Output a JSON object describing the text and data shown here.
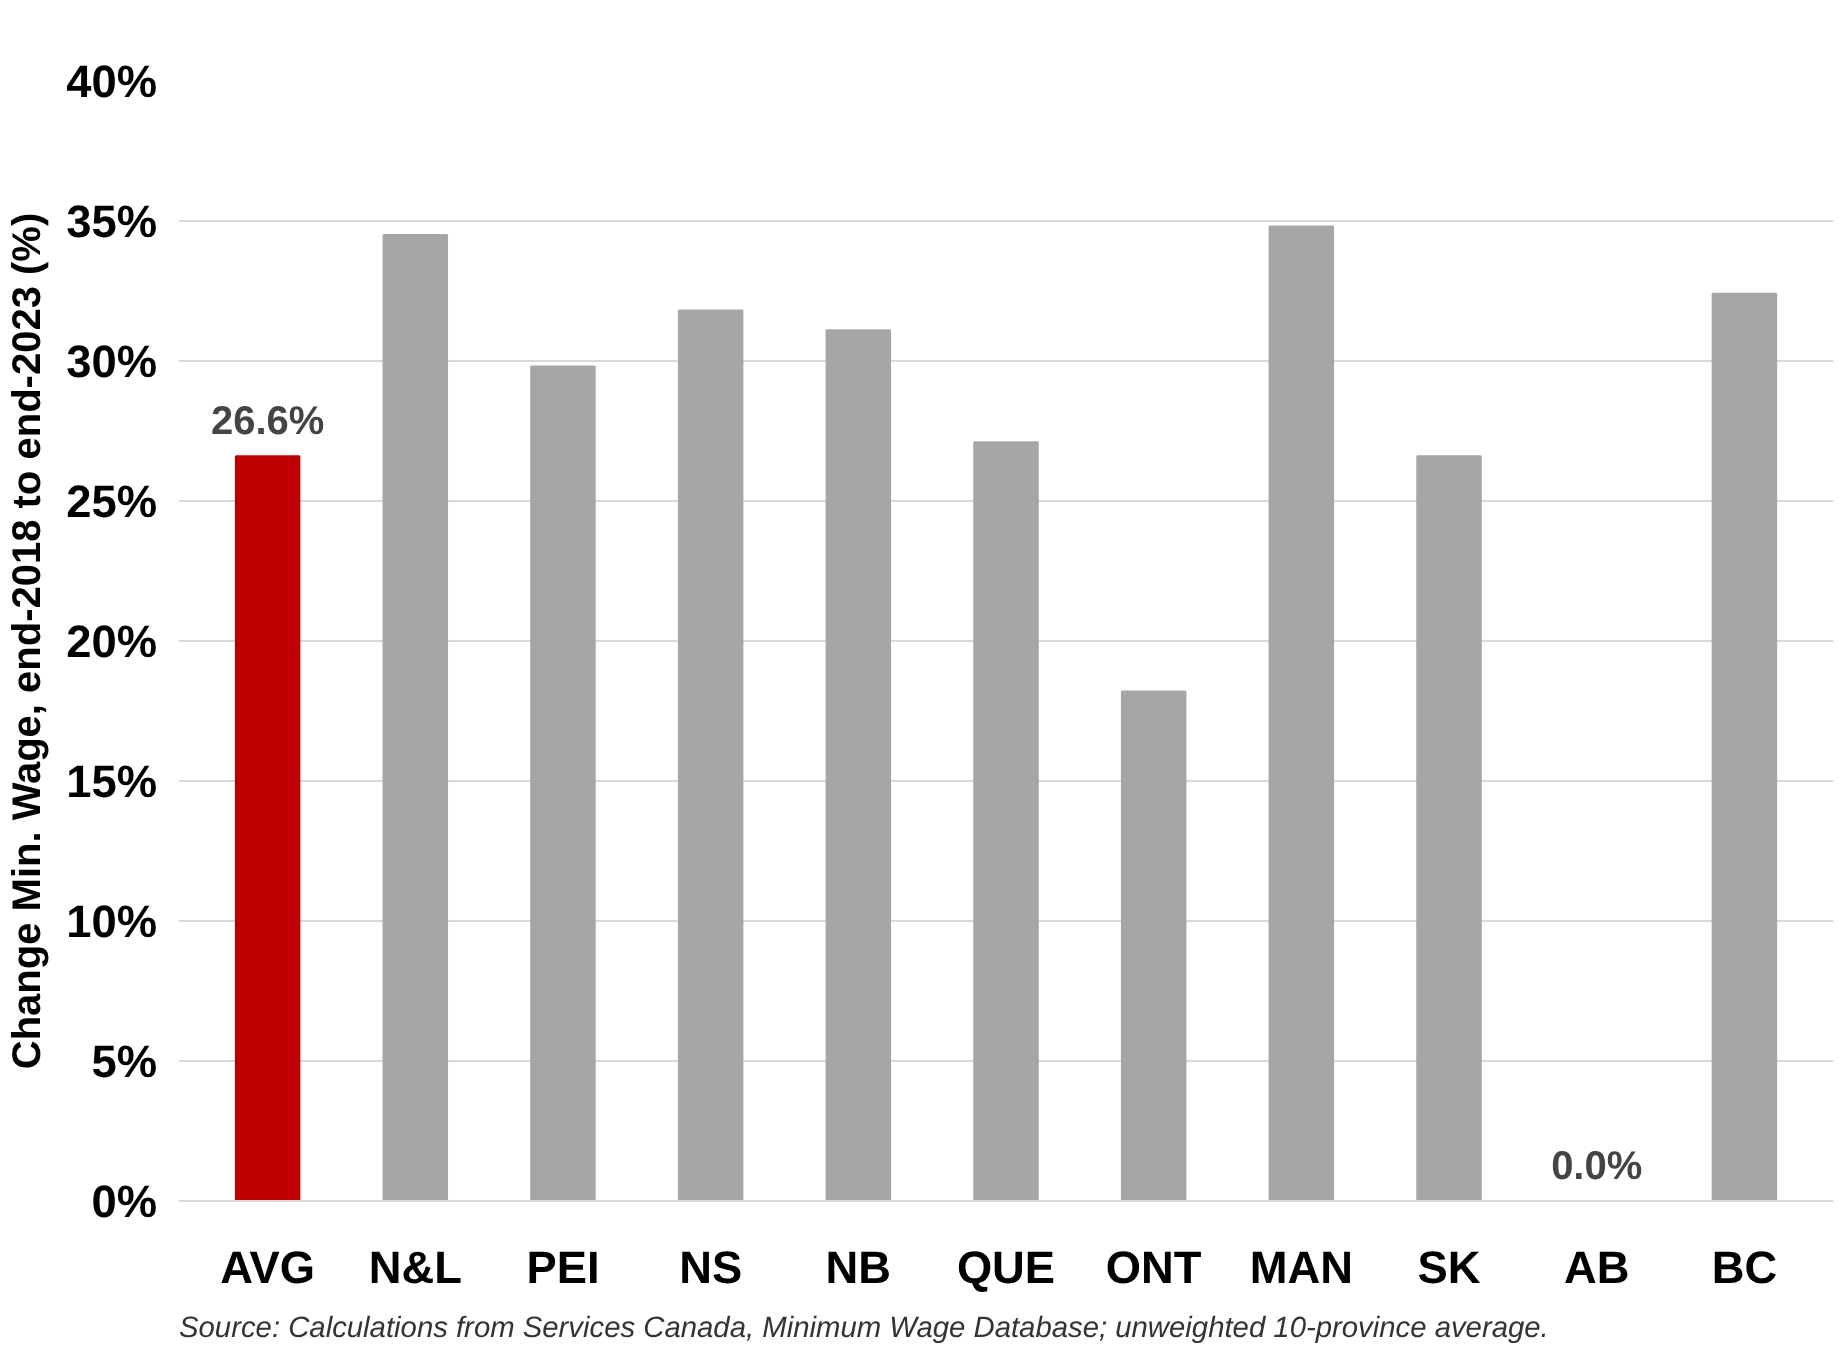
{
  "chart_data": {
    "type": "bar",
    "ylabel": "Change Min. Wage, end-2018 to end-2023 (%)",
    "categories": [
      "AVG",
      "N&L",
      "PEI",
      "NS",
      "NB",
      "QUE",
      "ONT",
      "MAN",
      "SK",
      "AB",
      "BC"
    ],
    "values": [
      26.6,
      34.5,
      29.8,
      31.8,
      31.1,
      27.1,
      18.2,
      34.8,
      26.6,
      0.0,
      32.4
    ],
    "colors": [
      "#c00000",
      "#a6a6a6",
      "#a6a6a6",
      "#a6a6a6",
      "#a6a6a6",
      "#a6a6a6",
      "#a6a6a6",
      "#a6a6a6",
      "#a6a6a6",
      "#a6a6a6",
      "#a6a6a6"
    ],
    "value_labels": [
      "26.6%",
      null,
      null,
      null,
      null,
      null,
      null,
      null,
      null,
      "0.0%",
      null
    ],
    "ylim": [
      0,
      40
    ],
    "yticks": [
      {
        "value": 0,
        "label": "0%"
      },
      {
        "value": 5,
        "label": "5%"
      },
      {
        "value": 10,
        "label": "10%"
      },
      {
        "value": 15,
        "label": "15%"
      },
      {
        "value": 20,
        "label": "20%"
      },
      {
        "value": 25,
        "label": "25%"
      },
      {
        "value": 30,
        "label": "30%"
      },
      {
        "value": 35,
        "label": "35%"
      },
      {
        "value": 40,
        "label": "40%"
      }
    ],
    "grid": "y",
    "annotations": [
      "Source: Calculations from Services Canada, Minimum Wage Database; unweighted 10-province average."
    ]
  }
}
